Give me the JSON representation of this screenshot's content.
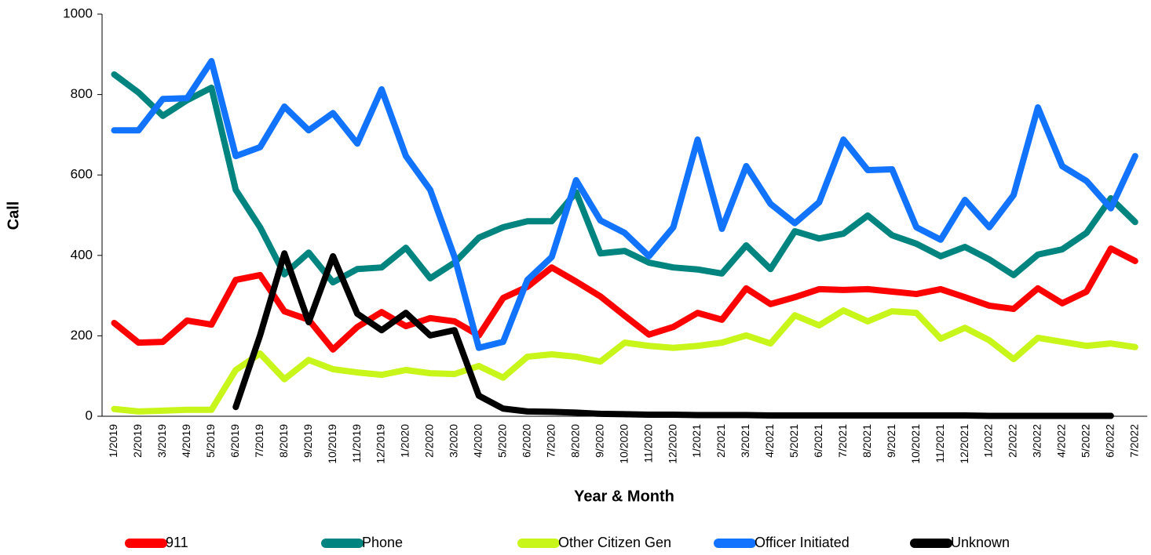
{
  "chart_data": {
    "type": "line",
    "xlabel": "Year & Month",
    "ylabel": "Call",
    "categories": [
      "1/2019",
      "2/2019",
      "3/2019",
      "4/2019",
      "5/2019",
      "6/2019",
      "7/2019",
      "8/2019",
      "9/2019",
      "10/2019",
      "11/2019",
      "12/2019",
      "1/2020",
      "2/2020",
      "3/2020",
      "4/2020",
      "5/2020",
      "6/2020",
      "7/2020",
      "8/2020",
      "9/2020",
      "10/2020",
      "11/2020",
      "12/2020",
      "1/2021",
      "2/2021",
      "3/2021",
      "4/2021",
      "5/2021",
      "6/2021",
      "7/2021",
      "8/2021",
      "9/2021",
      "10/2021",
      "11/2021",
      "12/2021",
      "1/2022",
      "2/2022",
      "3/2022",
      "4/2022",
      "5/2022",
      "6/2022",
      "7/2022"
    ],
    "ylim": [
      0,
      1000
    ],
    "yticks": [
      0,
      200,
      400,
      600,
      800,
      1000
    ],
    "grid": false,
    "legend": "bottom",
    "series": [
      {
        "name": "911",
        "color": "#ff0000",
        "values": [
          232,
          183,
          185,
          238,
          228,
          339,
          351,
          261,
          240,
          166,
          222,
          259,
          224,
          244,
          236,
          201,
          294,
          322,
          370,
          335,
          298,
          250,
          203,
          222,
          257,
          240,
          318,
          279,
          296,
          316,
          314,
          316,
          310,
          304,
          316,
          296,
          275,
          267,
          318,
          281,
          310,
          417,
          386
        ]
      },
      {
        "name": "Phone",
        "color": "#00847f",
        "values": [
          850,
          805,
          747,
          786,
          817,
          563,
          470,
          353,
          407,
          333,
          366,
          370,
          419,
          343,
          382,
          444,
          470,
          485,
          485,
          557,
          405,
          411,
          382,
          370,
          365,
          355,
          425,
          366,
          460,
          442,
          454,
          499,
          450,
          429,
          398,
          421,
          390,
          351,
          402,
          415,
          456,
          542,
          483
        ]
      },
      {
        "name": "Other Citizen Gen",
        "color": "#c8f51a",
        "values": [
          18,
          12,
          14,
          16,
          16,
          115,
          156,
          92,
          140,
          117,
          109,
          103,
          115,
          107,
          105,
          125,
          96,
          148,
          154,
          148,
          136,
          183,
          175,
          170,
          175,
          183,
          201,
          181,
          251,
          226,
          263,
          236,
          261,
          257,
          193,
          220,
          189,
          142,
          195,
          185,
          175,
          181,
          172
        ]
      },
      {
        "name": "Officer Initiated",
        "color": "#1273ff",
        "values": [
          711,
          711,
          789,
          791,
          883,
          647,
          669,
          770,
          711,
          754,
          678,
          813,
          647,
          563,
          396,
          170,
          185,
          339,
          396,
          587,
          487,
          456,
          398,
          470,
          688,
          466,
          622,
          528,
          480,
          532,
          688,
          612,
          614,
          470,
          439,
          538,
          470,
          550,
          768,
          622,
          585,
          517,
          647
        ]
      },
      {
        "name": "Unknown",
        "color": "#000000",
        "values": [
          null,
          null,
          null,
          null,
          null,
          23,
          201,
          405,
          234,
          398,
          255,
          214,
          257,
          201,
          214,
          51,
          19,
          12,
          11,
          9,
          6,
          5,
          4,
          4,
          3,
          3,
          3,
          2,
          2,
          2,
          2,
          2,
          2,
          2,
          2,
          2,
          1,
          1,
          1,
          1,
          1,
          1,
          null
        ]
      }
    ]
  }
}
